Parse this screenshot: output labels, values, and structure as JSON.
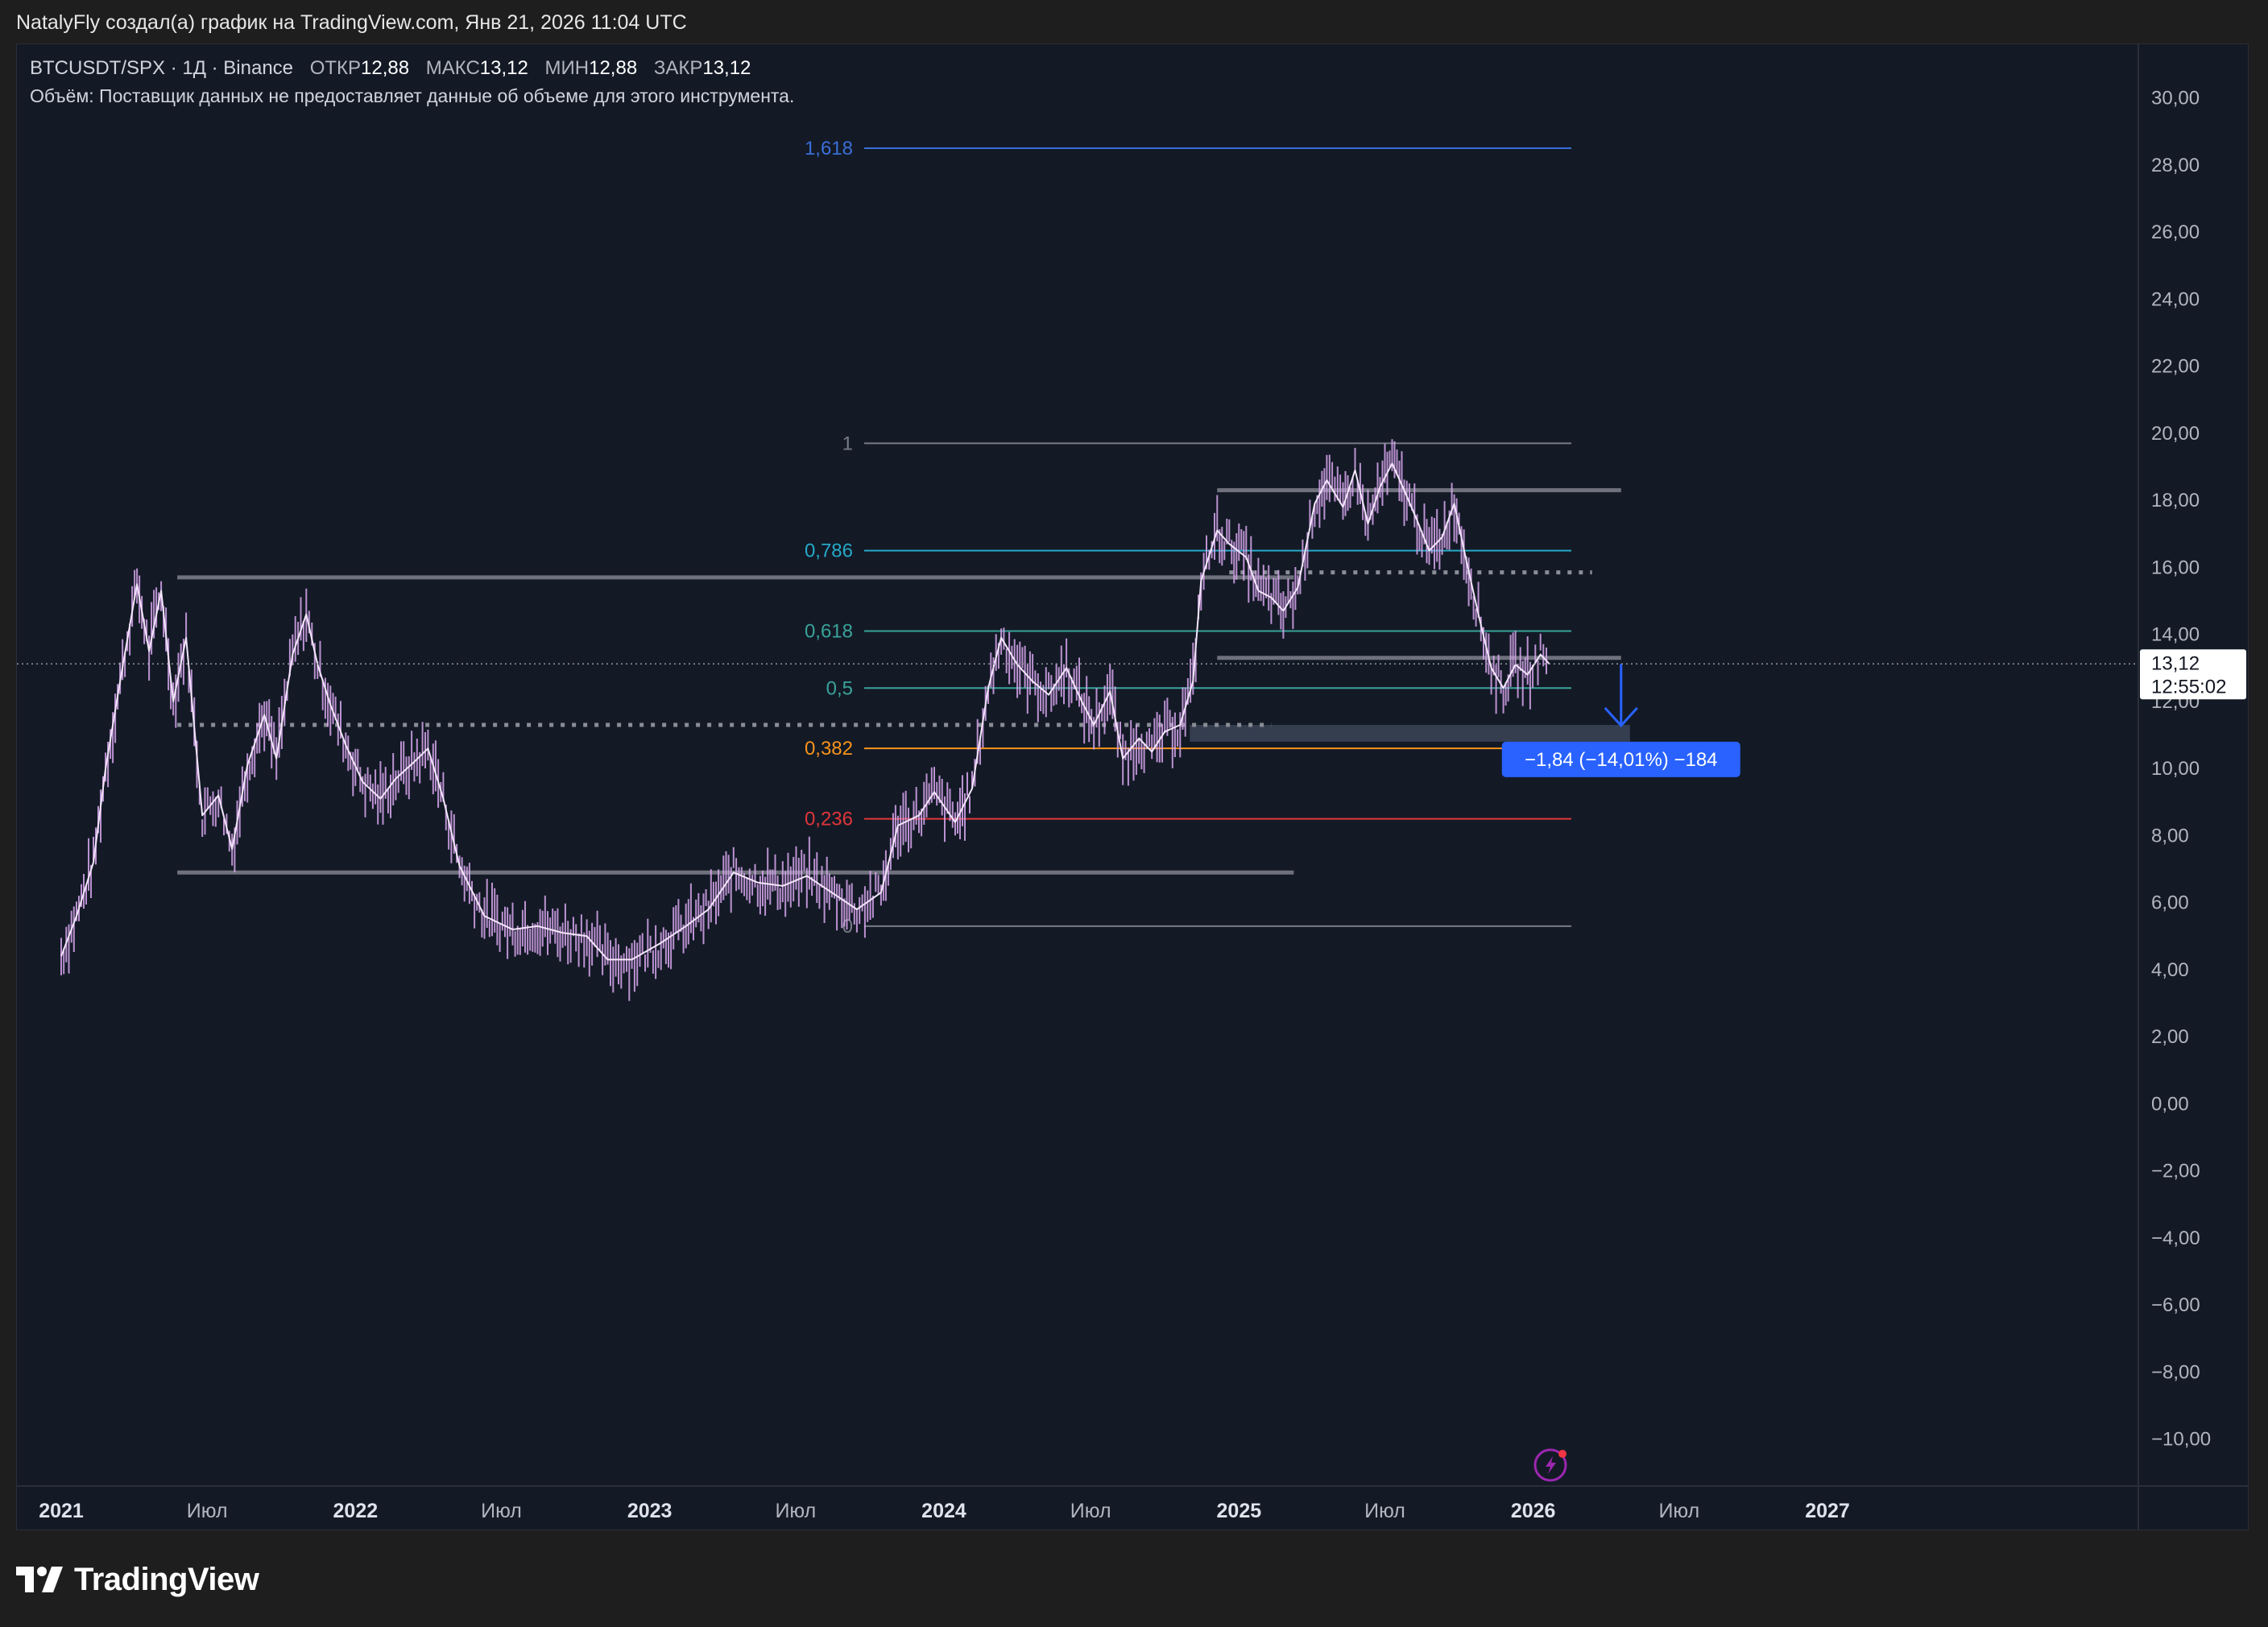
{
  "header": {
    "attribution": "NatalyFly создал(а) график на TradingView.com, Янв 21, 2026 11:04 UTC"
  },
  "legend": {
    "symbol": "BTCUSDT/SPX · 1Д · Binance",
    "open_label": "ОТКР",
    "open_value": "12,88",
    "high_label": "МАКС",
    "high_value": "13,12",
    "low_label": "МИН",
    "low_value": "12,88",
    "close_label": "ЗАКР",
    "close_value": "13,12",
    "volume_note": "Объём: Поставщик данных не предоставляет данные об объеме для этого инструмента."
  },
  "colors": {
    "background": "#131a26",
    "candle": "#d9a8f0",
    "support_line": "#5d606b",
    "fib_1618": "#3a6fd8",
    "fib_0786": "#26a9c9",
    "fib_0618": "#3aa39a",
    "fib_0382": "#f7931a",
    "fib_0236": "#e0353a",
    "fib_neutral": "#787b86",
    "measure": "#2962ff",
    "price_tag": "#ffffff"
  },
  "chart_data": {
    "type": "line",
    "symbol": "BTCUSDT/SPX",
    "timeframe": "1Д",
    "x_axis_labels": [
      "2021",
      "Июл",
      "2022",
      "Июл",
      "2023",
      "Июл",
      "2024",
      "Июл",
      "2025",
      "Июл",
      "2026",
      "Июл",
      "2027"
    ],
    "x_axis_dates": [
      "2021-01-01",
      "2021-07-01",
      "2022-01-01",
      "2022-07-01",
      "2023-01-01",
      "2023-07-01",
      "2024-01-01",
      "2024-07-01",
      "2025-01-01",
      "2025-07-01",
      "2026-01-01",
      "2026-07-01",
      "2027-01-01"
    ],
    "y_ticks": [
      "30,00",
      "28,00",
      "26,00",
      "24,00",
      "22,00",
      "20,00",
      "18,00",
      "16,00",
      "14,00",
      "12,00",
      "10,00",
      "8,00",
      "6,00",
      "4,00",
      "2,00",
      "0,00",
      "−2,00",
      "−4,00",
      "−6,00",
      "−8,00",
      "−10,00"
    ],
    "ylim": [
      -11.4,
      31.6
    ],
    "series": [
      {
        "values": [
          [
            "2021-01-01",
            4.4
          ],
          [
            "2021-01-20",
            5.6
          ],
          [
            "2021-02-10",
            7.2
          ],
          [
            "2021-02-25",
            10.0
          ],
          [
            "2021-03-15",
            12.6
          ],
          [
            "2021-04-05",
            15.5
          ],
          [
            "2021-04-20",
            13.5
          ],
          [
            "2021-05-05",
            15.3
          ],
          [
            "2021-05-20",
            12.0
          ],
          [
            "2021-06-05",
            13.9
          ],
          [
            "2021-06-25",
            8.6
          ],
          [
            "2021-07-15",
            9.2
          ],
          [
            "2021-08-01",
            7.6
          ],
          [
            "2021-08-20",
            10.1
          ],
          [
            "2021-09-10",
            11.6
          ],
          [
            "2021-09-25",
            10.3
          ],
          [
            "2021-10-15",
            13.4
          ],
          [
            "2021-11-01",
            14.6
          ],
          [
            "2021-11-15",
            13.1
          ],
          [
            "2021-12-01",
            11.9
          ],
          [
            "2021-12-20",
            10.7
          ],
          [
            "2022-01-10",
            9.6
          ],
          [
            "2022-02-01",
            9.1
          ],
          [
            "2022-02-20",
            9.7
          ],
          [
            "2022-03-15",
            10.2
          ],
          [
            "2022-04-01",
            10.6
          ],
          [
            "2022-04-20",
            9.1
          ],
          [
            "2022-05-10",
            7.1
          ],
          [
            "2022-06-10",
            5.6
          ],
          [
            "2022-07-15",
            5.2
          ],
          [
            "2022-08-15",
            5.3
          ],
          [
            "2022-09-15",
            5.1
          ],
          [
            "2022-10-15",
            5.0
          ],
          [
            "2022-11-10",
            4.3
          ],
          [
            "2022-12-10",
            4.3
          ],
          [
            "2023-01-15",
            4.8
          ],
          [
            "2023-02-15",
            5.3
          ],
          [
            "2023-03-15",
            5.8
          ],
          [
            "2023-04-15",
            6.9
          ],
          [
            "2023-05-15",
            6.6
          ],
          [
            "2023-06-15",
            6.5
          ],
          [
            "2023-07-15",
            6.8
          ],
          [
            "2023-08-15",
            6.3
          ],
          [
            "2023-09-15",
            5.8
          ],
          [
            "2023-10-15",
            6.3
          ],
          [
            "2023-11-05",
            8.3
          ],
          [
            "2023-12-01",
            8.6
          ],
          [
            "2023-12-20",
            9.3
          ],
          [
            "2024-01-15",
            8.4
          ],
          [
            "2024-02-05",
            9.4
          ],
          [
            "2024-02-25",
            12.4
          ],
          [
            "2024-03-12",
            13.9
          ],
          [
            "2024-04-01",
            13.1
          ],
          [
            "2024-04-20",
            12.6
          ],
          [
            "2024-05-10",
            12.2
          ],
          [
            "2024-06-01",
            13.0
          ],
          [
            "2024-06-20",
            12.0
          ],
          [
            "2024-07-05",
            11.3
          ],
          [
            "2024-07-25",
            12.3
          ],
          [
            "2024-08-10",
            10.3
          ],
          [
            "2024-08-30",
            10.9
          ],
          [
            "2024-09-15",
            10.5
          ],
          [
            "2024-10-01",
            11.1
          ],
          [
            "2024-10-20",
            11.3
          ],
          [
            "2024-11-05",
            12.6
          ],
          [
            "2024-11-15",
            15.6
          ],
          [
            "2024-12-05",
            17.1
          ],
          [
            "2024-12-20",
            16.7
          ],
          [
            "2025-01-10",
            16.3
          ],
          [
            "2025-01-25",
            15.3
          ],
          [
            "2025-02-10",
            15.1
          ],
          [
            "2025-02-25",
            14.7
          ],
          [
            "2025-03-15",
            15.4
          ],
          [
            "2025-04-05",
            17.9
          ],
          [
            "2025-04-20",
            18.6
          ],
          [
            "2025-05-10",
            17.8
          ],
          [
            "2025-05-25",
            18.9
          ],
          [
            "2025-06-10",
            17.3
          ],
          [
            "2025-06-25",
            18.4
          ],
          [
            "2025-07-10",
            19.1
          ],
          [
            "2025-07-25",
            18.3
          ],
          [
            "2025-08-10",
            17.4
          ],
          [
            "2025-08-25",
            16.5
          ],
          [
            "2025-09-10",
            16.9
          ],
          [
            "2025-09-25",
            17.9
          ],
          [
            "2025-10-10",
            16.2
          ],
          [
            "2025-10-25",
            14.6
          ],
          [
            "2025-11-10",
            13.0
          ],
          [
            "2025-11-25",
            12.4
          ],
          [
            "2025-12-10",
            13.1
          ],
          [
            "2025-12-25",
            12.8
          ],
          [
            "2026-01-10",
            13.4
          ],
          [
            "2026-01-21",
            13.12
          ]
        ]
      }
    ],
    "fibonacci": [
      {
        "level": "1,618",
        "price": 28.5
      },
      {
        "level": "1",
        "price": 19.7
      },
      {
        "level": "0,786",
        "price": 16.5
      },
      {
        "level": "0,618",
        "price": 14.1
      },
      {
        "level": "0,5",
        "price": 12.4
      },
      {
        "level": "0,382",
        "price": 10.6
      },
      {
        "level": "0,236",
        "price": 8.5
      },
      {
        "level": "0",
        "price": 5.3
      }
    ],
    "support_lines": [
      {
        "from": "2021-05-25",
        "to": "2025-03-10",
        "price": 15.7,
        "style": "solid"
      },
      {
        "from": "2021-05-25",
        "to": "2025-03-10",
        "price": 6.9,
        "style": "solid"
      },
      {
        "from": "2024-12-05",
        "to": "2026-04-20",
        "price": 18.3,
        "style": "solid"
      },
      {
        "from": "2024-12-05",
        "to": "2026-04-20",
        "price": 13.3,
        "style": "solid"
      },
      {
        "from": "2024-12-20",
        "to": "2026-03-15",
        "price": 15.85,
        "style": "dotted"
      },
      {
        "from": "2021-05-25",
        "to": "2025-02-10",
        "price": 11.3,
        "style": "dotted"
      }
    ],
    "zone": {
      "from": "2024-11-01",
      "to": "2026-05-01",
      "top": 11.3,
      "bottom": 10.8
    },
    "measure": {
      "label": "−1,84 (−14,01%) −184",
      "from_price": 13.12,
      "to_price": 11.28,
      "date": "2026-04-20"
    },
    "last_price": {
      "value": "13,12",
      "countdown": "12:55:02"
    }
  },
  "footer": {
    "brand": "TradingView",
    "logo_text": "TV"
  }
}
